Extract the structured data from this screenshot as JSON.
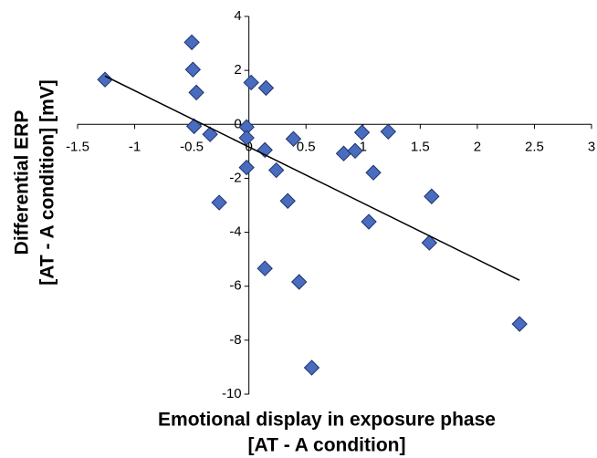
{
  "chart_data": {
    "type": "scatter",
    "x_label": [
      "Emotional display in exposure phase",
      "[AT - A condition]"
    ],
    "y_label": [
      "Differential ERP",
      "[AT - A condition]  [mV]"
    ],
    "series": [
      {
        "color": "#4a6cbf",
        "x": [
          -1.26,
          -0.5,
          -0.49,
          -0.46,
          -0.48,
          -0.34,
          -0.26,
          -0.02,
          -0.02,
          -0.02,
          0.02,
          0.15,
          0.14,
          0.24,
          0.14,
          0.34,
          0.39,
          0.44,
          0.55,
          0.83,
          0.93,
          0.99,
          1.22,
          1.09,
          1.05,
          1.58,
          1.6,
          2.37
        ],
        "values": [
          1.66,
          3.04,
          2.03,
          1.18,
          -0.07,
          -0.37,
          -2.9,
          -0.1,
          -0.5,
          -1.6,
          1.55,
          1.35,
          -0.95,
          -1.7,
          -5.34,
          -2.84,
          -0.54,
          -5.84,
          -9.02,
          -1.08,
          -0.98,
          -0.3,
          -0.27,
          -1.79,
          -3.61,
          -4.39,
          -2.67,
          -7.4
        ]
      }
    ],
    "trendline": {
      "color": "#000000",
      "x": [
        -1.26,
        2.37
      ],
      "values": [
        1.79,
        -5.78
      ]
    },
    "xlim": [
      -1.5,
      3
    ],
    "xticks": [
      -1.5,
      -1,
      -0.5,
      0,
      0.5,
      1,
      1.5,
      2,
      2.5,
      3
    ],
    "ylim": [
      -10,
      4
    ],
    "yticks": [
      -10,
      -8,
      -6,
      -4,
      -2,
      0,
      2,
      4
    ]
  }
}
